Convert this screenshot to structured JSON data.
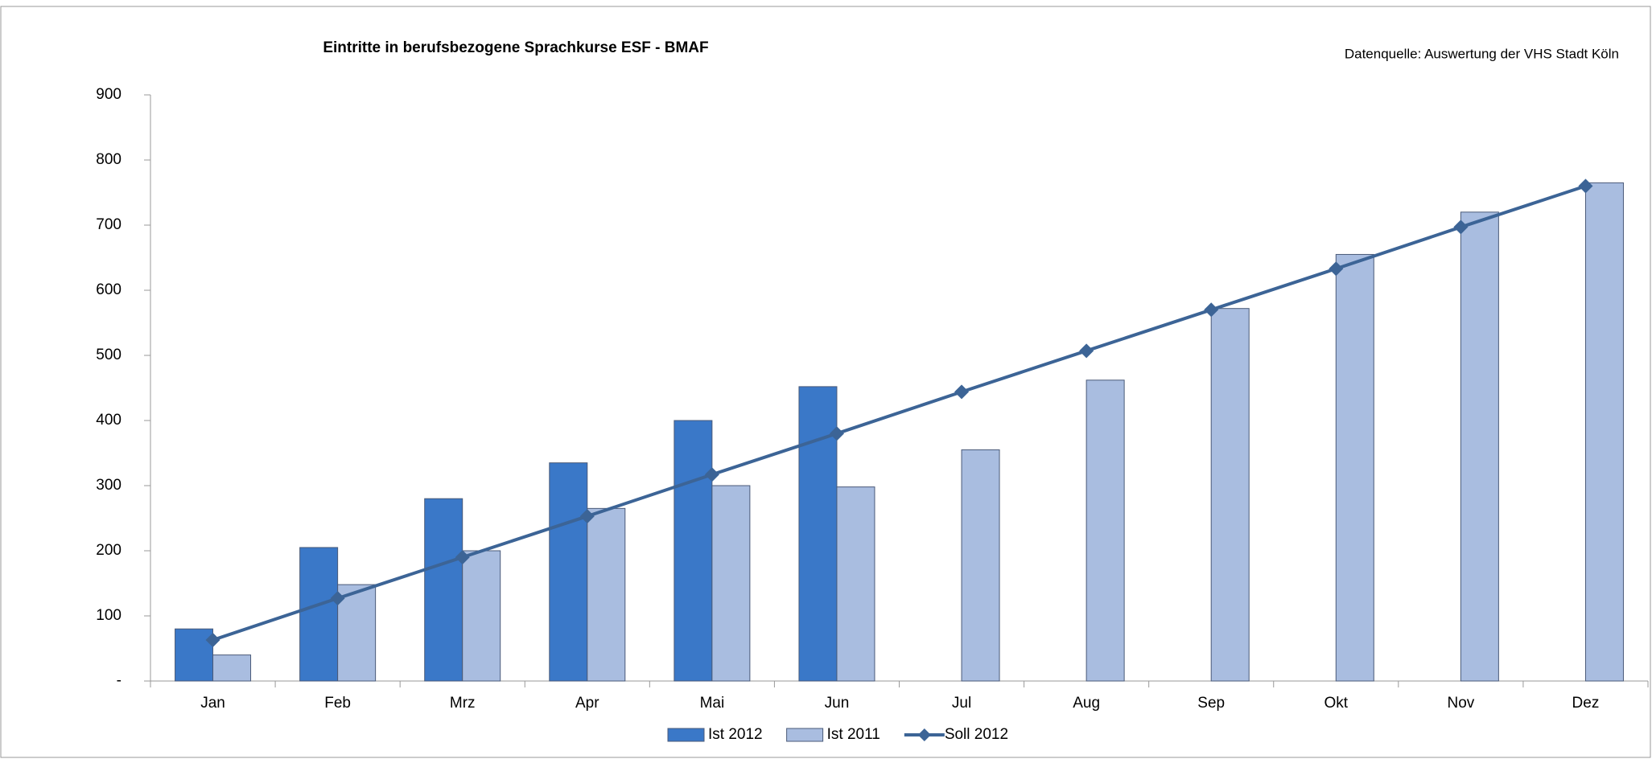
{
  "chart_data": {
    "type": "bar_line",
    "title": "Eintritte in berufsbezogene Sprachkurse ESF - BMAF",
    "subtitle": "Datenquelle: Auswertung der VHS Stadt Köln",
    "categories": [
      "Jan",
      "Feb",
      "Mrz",
      "Apr",
      "Mai",
      "Jun",
      "Jul",
      "Aug",
      "Sep",
      "Okt",
      "Nov",
      "Dez"
    ],
    "series": [
      {
        "name": "Ist 2012",
        "color": "#3a78c8",
        "type": "bar",
        "values": [
          80,
          205,
          280,
          335,
          400,
          452,
          null,
          null,
          null,
          null,
          null,
          null
        ]
      },
      {
        "name": "Ist 2011",
        "color": "#a9bde0",
        "type": "bar",
        "values": [
          40,
          148,
          200,
          265,
          300,
          298,
          355,
          462,
          572,
          655,
          720,
          765
        ]
      },
      {
        "name": "Soll 2012",
        "color": "#3c6496",
        "type": "line",
        "values": [
          63,
          127,
          190,
          253,
          317,
          380,
          444,
          507,
          570,
          633,
          697,
          760
        ]
      }
    ],
    "ylim": [
      0,
      900
    ],
    "yticks": [
      {
        "value": 0,
        "label": "-"
      },
      100,
      200,
      300,
      400,
      500,
      600,
      700,
      800,
      900
    ],
    "legend": "bottom"
  }
}
